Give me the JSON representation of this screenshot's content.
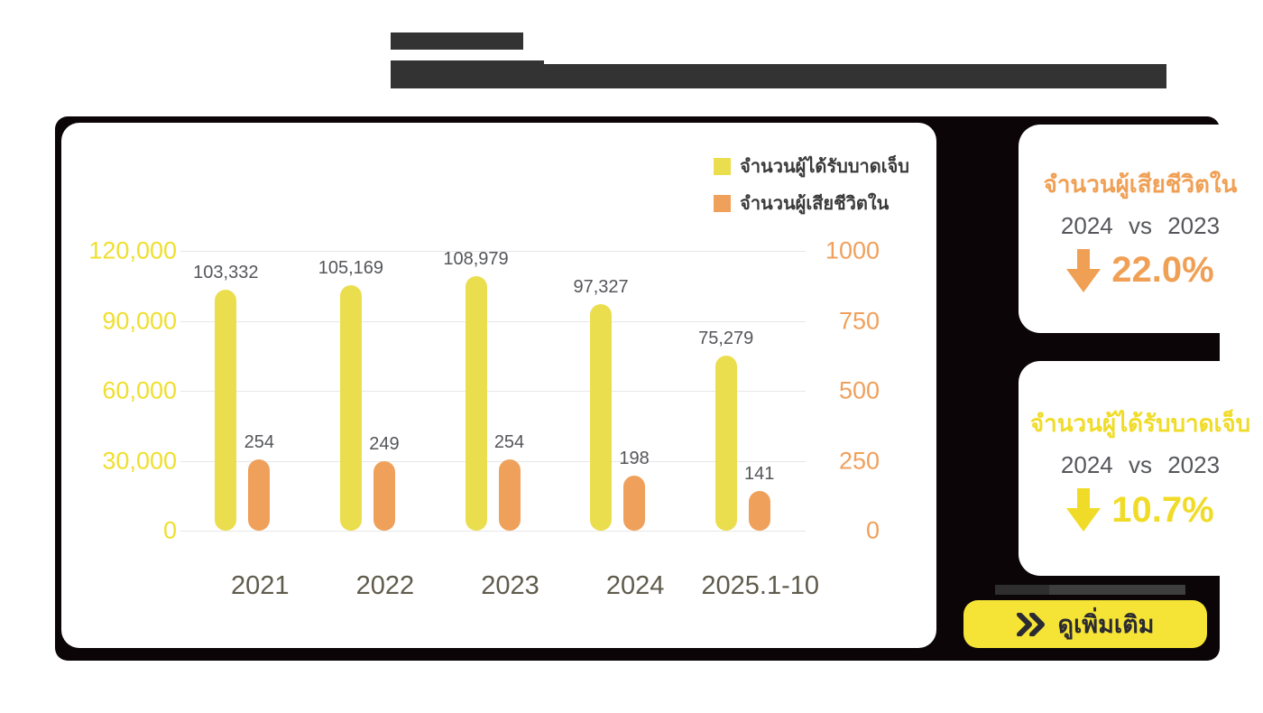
{
  "colors": {
    "backdrop": "#0b0508",
    "redacted": "#333333",
    "injured_yellow": "#ebde4e",
    "deaths_orange": "#efa15b",
    "axis_yellow": "#efdf2e",
    "axis_orange": "#f0a05c",
    "value_label_gray": "#55565a",
    "x_label_olive": "#5f5b4c",
    "button_yellow": "#f5e335",
    "button_text": "#2a2a32"
  },
  "chart_data": {
    "type": "bar",
    "title": "",
    "categories": [
      "2021",
      "2022",
      "2023",
      "2024",
      "2025.1-10"
    ],
    "series": [
      {
        "name": "จำนวนผู้ได้รับบาดเจ็บ",
        "axis": "left",
        "color": "#ebde4e",
        "values": [
          103332,
          105169,
          108979,
          97327,
          75279
        ],
        "labels": [
          "103,332",
          "105,169",
          "108,979",
          "97,327",
          "75,279"
        ]
      },
      {
        "name": "จำนวนผู้เสียชีวิตใน",
        "axis": "right",
        "color": "#efa15b",
        "values": [
          254,
          249,
          254,
          198,
          141
        ],
        "labels": [
          "254",
          "249",
          "254",
          "198",
          "141"
        ]
      }
    ],
    "left_axis": {
      "ticks": [
        "120,000",
        "90,000",
        "60,000",
        "30,000",
        "0"
      ],
      "max": 120000,
      "min": 0,
      "color": "#efdf2e"
    },
    "right_axis": {
      "ticks": [
        "1000",
        "750",
        "500",
        "250",
        "0"
      ],
      "max": 1000,
      "min": 0,
      "color": "#f0a05c"
    },
    "grid": true,
    "legend_position": "top-right"
  },
  "stat_cards": [
    {
      "title": "จำนวนผู้เสียชีวิตใน",
      "accent": "#f0a055",
      "compare": "2024 vs 2023",
      "delta": "22.0%",
      "direction": "down"
    },
    {
      "title": "จำนวนผู้ได้รับบาดเจ็บ",
      "accent": "#f0dc28",
      "compare": "2024 vs 2023",
      "delta": "10.7%",
      "direction": "down"
    }
  ],
  "button": {
    "label": "ดูเพิ่มเติม",
    "icon": "double-chevron-right"
  }
}
